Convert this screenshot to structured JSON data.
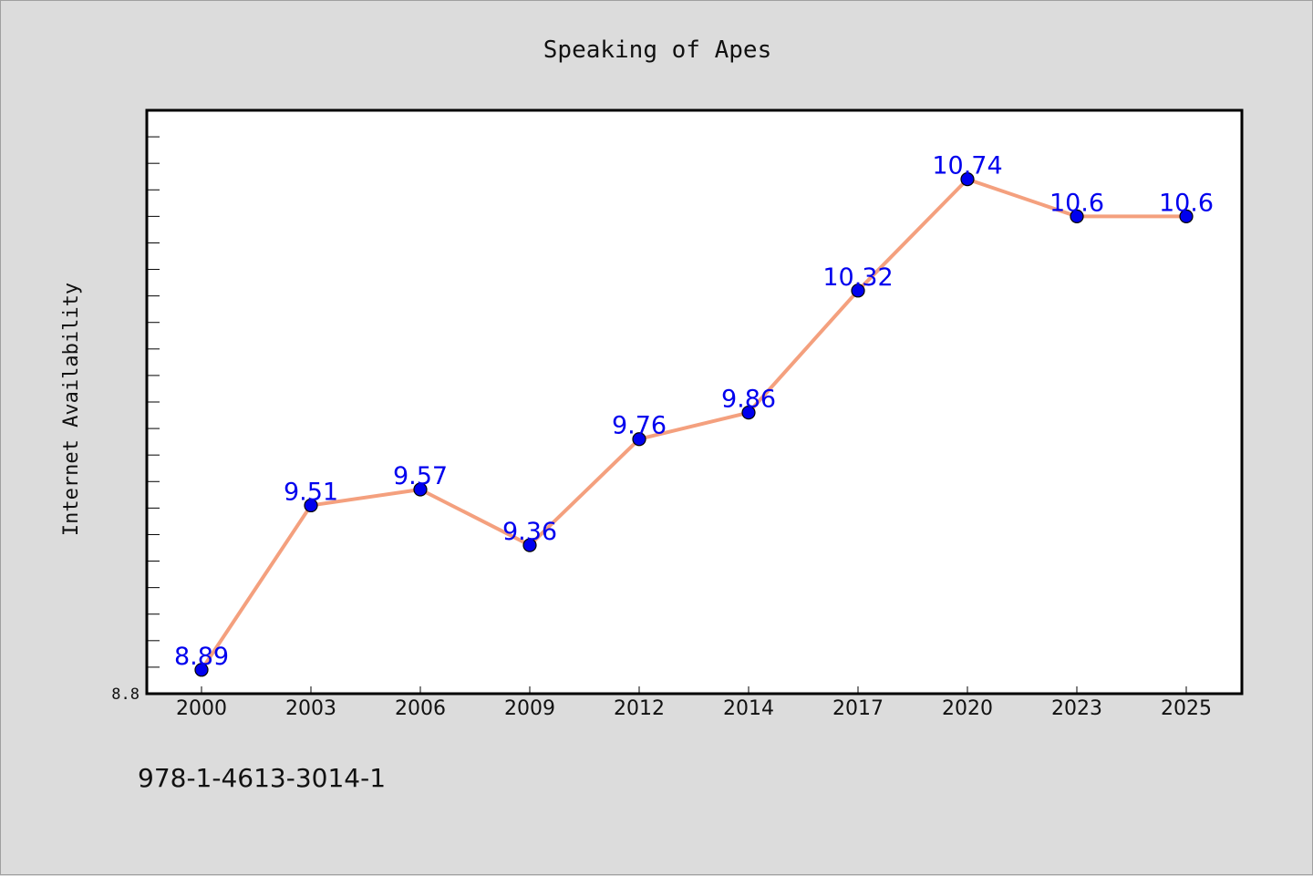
{
  "chart_data": {
    "type": "line",
    "title": "Speaking of Apes",
    "xlabel": "",
    "ylabel": "Internet Availability",
    "categories": [
      "2000",
      "2003",
      "2006",
      "2009",
      "2012",
      "2014",
      "2017",
      "2020",
      "2023",
      "2025"
    ],
    "series": [
      {
        "values": [
          8.89,
          9.51,
          9.57,
          9.36,
          9.76,
          9.86,
          10.32,
          10.74,
          10.6,
          10.6
        ]
      }
    ],
    "ylim": [
      8.8,
      11.0
    ],
    "y_tick_labels": [
      "8.8"
    ],
    "grid": false,
    "legend": "none",
    "colors": {
      "line": "#f4a07e",
      "marker": "#0000ee",
      "data_label": "#0000ee",
      "plot_background": "#ffffff",
      "figure_background": "#dcdcdc"
    }
  },
  "footer": {
    "text": "978-1-4613-3014-1"
  }
}
